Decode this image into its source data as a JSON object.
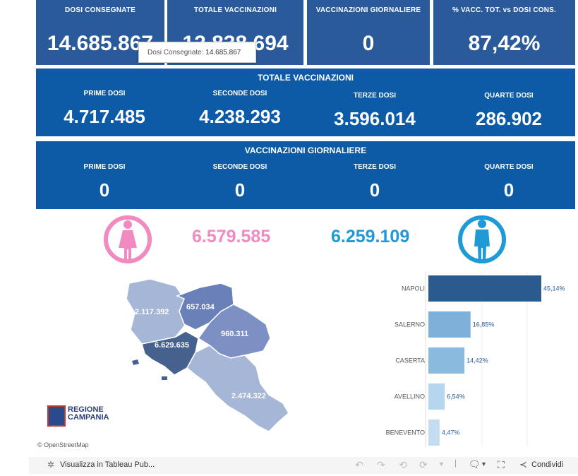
{
  "kpis": [
    {
      "label": "DOSI  CONSEGNATE",
      "value": "14.685.867"
    },
    {
      "label": "TOTALE VACCINAZIONI",
      "value": "12.838.694"
    },
    {
      "label": "VACCINAZIONI GIORNALIERE",
      "value": "0"
    },
    {
      "label": "% VACC. TOT. vs DOSI CONS.",
      "value": "87,42%"
    }
  ],
  "tooltip": {
    "label": "Dosi Consegnate:",
    "value": "14.685.867"
  },
  "totale_panel": {
    "title": "TOTALE VACCINAZIONI",
    "cols": [
      {
        "label": "PRIME DOSI",
        "value": "4.717.485"
      },
      {
        "label": "SECONDE DOSI",
        "value": "4.238.293"
      },
      {
        "label": "TERZE DOSI",
        "value": "3.596.014"
      },
      {
        "label": "QUARTE DOSI",
        "value": "286.902"
      }
    ]
  },
  "giornaliere_panel": {
    "title": "VACCINAZIONI GIORNALIERE",
    "cols": [
      {
        "label": "PRIME DOSI",
        "value": "0"
      },
      {
        "label": "SECONDE DOSI",
        "value": "0"
      },
      {
        "label": "TERZE DOSI",
        "value": "0"
      },
      {
        "label": "QUARTE DOSI",
        "value": "0"
      }
    ]
  },
  "gender": {
    "female_value": "6.579.585",
    "male_value": "6.259.109",
    "female_color": "#f08ac0",
    "male_color": "#1e9ad6"
  },
  "map": {
    "labels": {
      "caserta": "2.117.392",
      "benevento": "657.034",
      "avellino": "960.311",
      "napoli": "6.629.635",
      "salerno": "2.474.322"
    },
    "logo_line1": "REGIONE",
    "logo_line2": "CAMPANIA",
    "attribution": "© OpenStreetMap"
  },
  "provinces_bars": [
    {
      "name": "NAPOLI",
      "pct": "45,14%",
      "value": 45.14,
      "color": "#2b5a8f"
    },
    {
      "name": "SALERNO",
      "pct": "16,85%",
      "value": 16.85,
      "color": "#7fb0d9"
    },
    {
      "name": "CASERTA",
      "pct": "14,42%",
      "value": 14.42,
      "color": "#8bbadf"
    },
    {
      "name": "AVELLINO",
      "pct": "6,54%",
      "value": 6.54,
      "color": "#b6d5ef"
    },
    {
      "name": "BENEVENTO",
      "pct": "4,47%",
      "value": 4.47,
      "color": "#c2dcf2"
    }
  ],
  "footer": {
    "view_label": "Visualizza in Tableau Pub...",
    "share_label": "Condividi"
  }
}
